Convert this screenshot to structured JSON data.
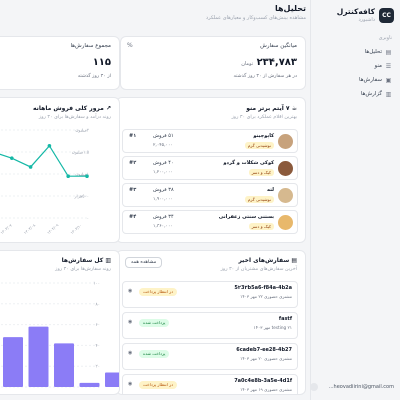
{
  "sidebar": {
    "brand_logo": "CC",
    "brand_name": "کافه‌کنترل",
    "brand_sub": "داشبورد",
    "section_label": "ناوبری",
    "items": [
      {
        "label": "تحلیل‌ها",
        "icon": "chart-icon"
      },
      {
        "label": "منو",
        "icon": "menu-icon"
      },
      {
        "label": "سفارش‌ها",
        "icon": "orders-icon"
      },
      {
        "label": "گزارش‌ها",
        "icon": "reports-icon"
      }
    ],
    "user_email": "...heovadiirini@gmail.com"
  },
  "header": {
    "title": "تحلیل‌ها",
    "subtitle": "مشاهده بینش‌های کسب‌وکار و معیارهای عملکرد"
  },
  "stats": {
    "avg": {
      "label": "میانگین سفارش",
      "value": "۲۳۴,۷۸۳",
      "unit": "تومان",
      "note": "در هر سفارش از ۳۰ روز گذشته"
    },
    "total": {
      "label": "مجموع سفارش‌ها",
      "value": "۱۱۵",
      "note": "از ۳۰ روز گذشته"
    }
  },
  "best_sellers": {
    "title": "۷ آیتم برتر منو",
    "subtitle": "بهترین اقلام عملکرد برای ۳۰ روز",
    "items": [
      {
        "name": "کاپوچینو",
        "category": "نوشیدنی گرم",
        "sales": "۵۱ فروش",
        "price": "۲,۰۴۵,۰۰۰",
        "rank": "#۱",
        "color": "#c7a27c"
      },
      {
        "name": "کوکی شکلات و گردو",
        "category": "کیک و دسر",
        "sales": "۴۰ فروش",
        "price": "۱,۲۰۰,۰۰۰",
        "rank": "#۲",
        "color": "#8b5a3c"
      },
      {
        "name": "لته",
        "category": "نوشیدنی گرم",
        "sales": "۳۸ فروش",
        "price": "۱,۹۰۰,۰۰۰",
        "rank": "#۳",
        "color": "#d6b98f"
      },
      {
        "name": "بستنی سنتی زعفرانی",
        "category": "کیک و دسر",
        "sales": "۳۴ فروش",
        "price": "۱,۳۶۰,۰۰۰",
        "rank": "#۴",
        "color": "#e8b86b"
      }
    ]
  },
  "trend": {
    "title": "مرور کلی فروش ماهانه",
    "subtitle": "روند درآمد و سفارش‌ها برای ۳۰ روز",
    "y_ticks": [
      "۲میلیون",
      "۱.۵میلیون",
      "۱میلیون",
      "۵۰۰هزار",
      "۰"
    ],
    "x_ticks": [
      "۱۴۰۳/۰۷",
      "۱۴۰۳/۰۸",
      "۱۴۰۳/۰۹",
      "۱۴۰۳/۱۰"
    ]
  },
  "orders": {
    "title": "سفارش‌های اخیر",
    "subtitle": "آخرین سفارش‌های مشتریان از ۳۰ روز",
    "view_all": "مشاهده همه",
    "items": [
      {
        "id": "5٢3٢b5a6-f84a-4b2a",
        "meta": "مشتری حضوری ۲۲ مهر ۱۴۰۳",
        "status": "در انتظار پرداخت",
        "status_type": "pending"
      },
      {
        "id": "fastf",
        "meta": "testing ۲۱ مهر ۱۴۰۳",
        "status": "پرداخت شده",
        "status_type": "paid"
      },
      {
        "id": "6cadeb7-ee28-4b27",
        "meta": "مشتری حضوری ۲۰ مهر ۱۴۰۳",
        "status": "پرداخت شده",
        "status_type": "paid"
      },
      {
        "id": "7a0c4e8b-3a5e-4d1f",
        "meta": "مشتری حضوری ۱۹ مهر ۱۴۰۳",
        "status": "در انتظار پرداخت",
        "status_type": "pending"
      }
    ]
  },
  "orders_chart": {
    "title": "کل سفارش‌ها",
    "subtitle": "روند سفارش‌ها برای ۳۰ روز",
    "y_ticks": [
      "۱۰۰",
      "۸۰",
      "۶۰",
      "۴۰",
      "۲۰",
      "۰"
    ]
  },
  "chart_data": [
    {
      "type": "line",
      "title": "مرور کلی فروش ماهانه",
      "color": "#14b8a6",
      "y_unit": "million",
      "ylim": [
        0,
        2
      ],
      "x": [
        "p1",
        "p2",
        "p3",
        "p4",
        "p5",
        "p6"
      ],
      "values": [
        1.5,
        1.36,
        1.16,
        1.64,
        0.95,
        0.95
      ],
      "grid": true
    },
    {
      "type": "bar",
      "title": "کل سفارش‌ها",
      "color": "#8b7cf6",
      "ylim": [
        0,
        100
      ],
      "values": [
        48,
        58,
        42,
        4,
        14
      ],
      "grid": true
    }
  ]
}
